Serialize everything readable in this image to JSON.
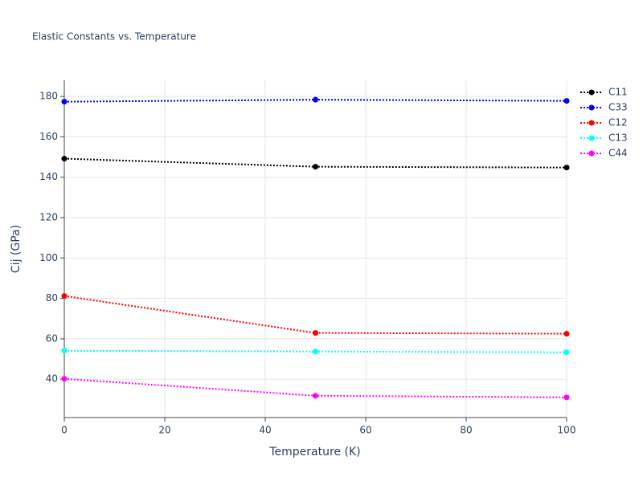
{
  "chart_data": {
    "type": "line",
    "title": "Elastic Constants vs. Temperature",
    "x_label": "Temperature (K)",
    "y_label": "Cij (GPa)",
    "x": [
      0,
      50,
      100
    ],
    "series": [
      {
        "name": "C11",
        "color": "#000000",
        "values": [
          149.2,
          145.2,
          144.8
        ]
      },
      {
        "name": "C33",
        "color": "#0000ff",
        "values": [
          177.4,
          178.4,
          177.8
        ]
      },
      {
        "name": "C12",
        "color": "#ff0000",
        "values": [
          81.2,
          62.9,
          62.5
        ]
      },
      {
        "name": "C13",
        "color": "#00ffff",
        "values": [
          54.1,
          53.7,
          53.3
        ]
      },
      {
        "name": "C44",
        "color": "#ff00ff",
        "values": [
          40.2,
          31.8,
          31.0
        ]
      }
    ],
    "xlim": [
      0,
      100
    ],
    "xticks": [
      0,
      20,
      40,
      60,
      80,
      100
    ],
    "ylim": [
      21,
      188
    ],
    "yticks": [
      40,
      60,
      80,
      100,
      120,
      140,
      160,
      180
    ],
    "grid": true
  }
}
